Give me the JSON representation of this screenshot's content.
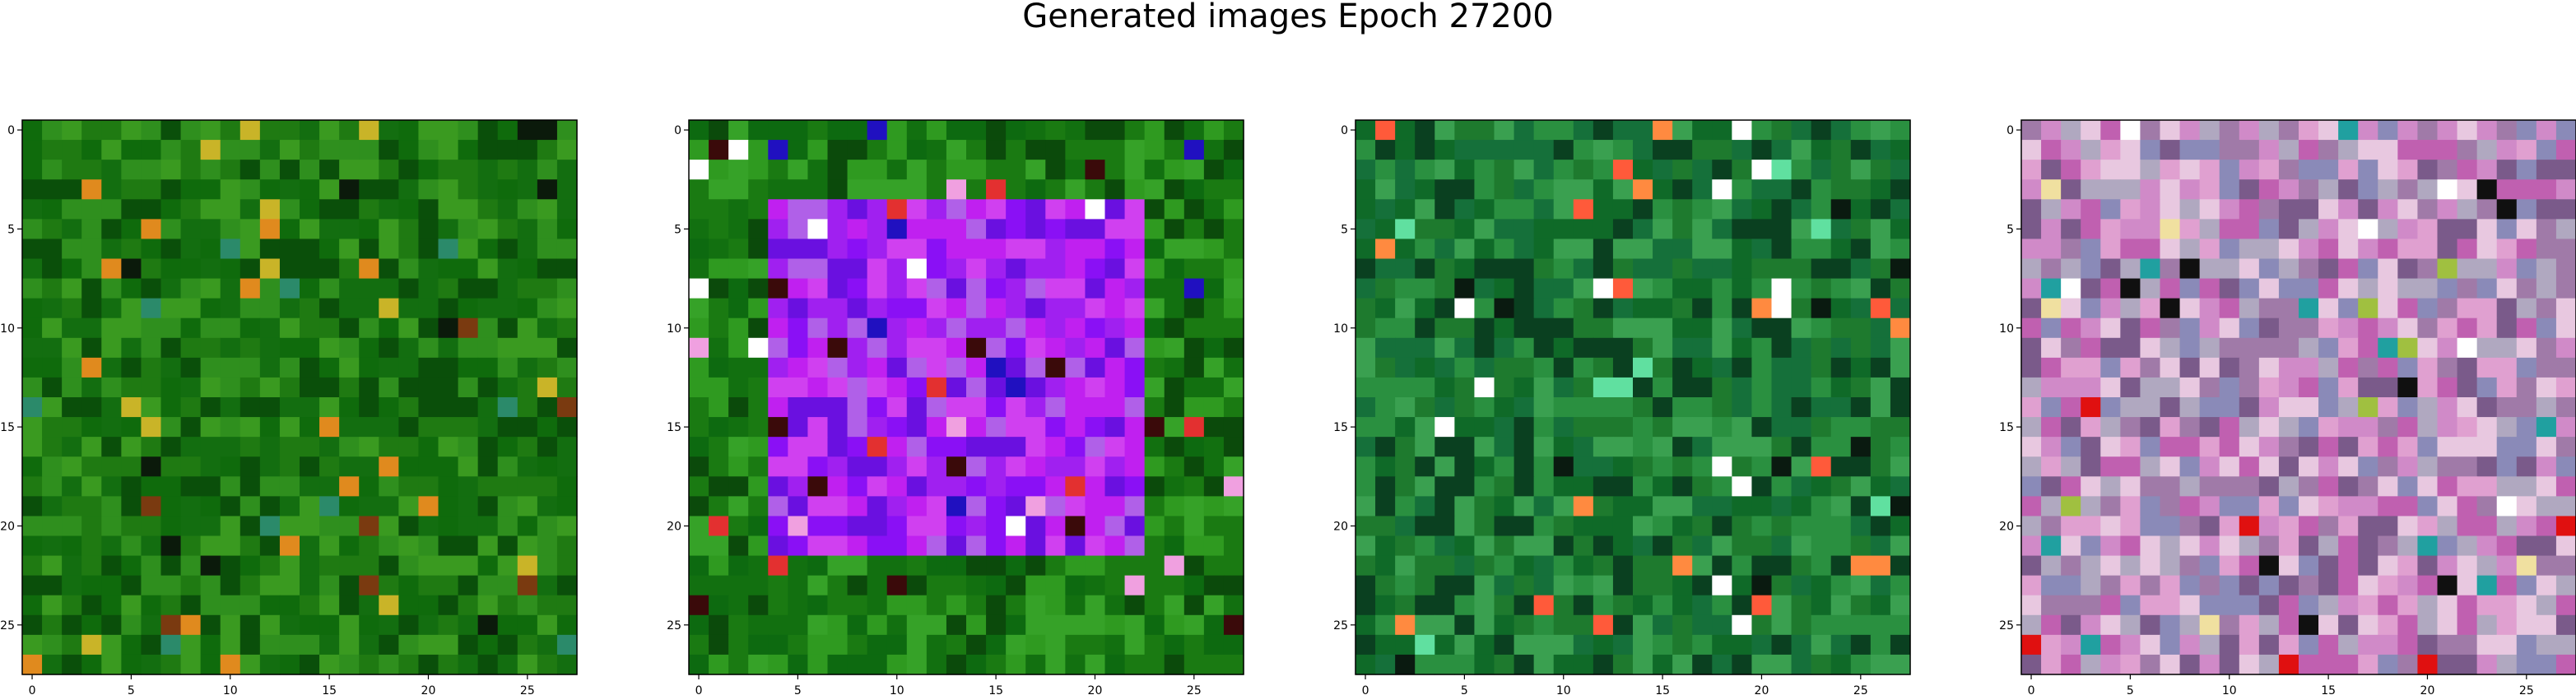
{
  "figure": {
    "title": "Generated images Epoch 27200"
  },
  "chart_data": [
    {
      "type": "heatmap",
      "colormap": "rgb-image",
      "seed": 11,
      "palette": [
        "#1f7a12",
        "#0f6b0c",
        "#2f8f1e",
        "#0a4f0a",
        "#3a9a20",
        "#136e10"
      ],
      "accents": [
        "#e08a1e",
        "#c9b428",
        "#2b8a6a",
        "#0b1a0b",
        "#7a3a10"
      ],
      "shape": [
        28,
        28
      ],
      "xticks": [
        0,
        5,
        10,
        15,
        20,
        25
      ],
      "yticks": [
        0,
        5,
        10,
        15,
        20,
        25
      ]
    },
    {
      "type": "heatmap",
      "colormap": "rgb-image",
      "seed": 23,
      "palette": [
        "#1a7a12",
        "#0d6a10",
        "#2f9a20",
        "#0b4a0b",
        "#36a228",
        "#127010"
      ],
      "inner_palette": [
        "#a020f0",
        "#c020f0",
        "#8a10f5",
        "#6a10e0",
        "#d040f0",
        "#b060e8"
      ],
      "accents": [
        "#e33030",
        "#f0a0e0",
        "#2010c0",
        "#3a0a0a",
        "#ffffff"
      ],
      "shape": [
        28,
        28
      ],
      "xticks": [
        0,
        5,
        10,
        15,
        20,
        25
      ],
      "yticks": [
        0,
        5,
        10,
        15,
        20,
        25
      ]
    },
    {
      "type": "heatmap",
      "colormap": "rgb-image",
      "seed": 37,
      "palette": [
        "#1e7a2e",
        "#0f6a28",
        "#2a9040",
        "#0a4020",
        "#3aa050",
        "#15703a"
      ],
      "accents": [
        "#ff5a3a",
        "#ffffff",
        "#60e0a0",
        "#0a1a10",
        "#ff8a40"
      ],
      "shape": [
        28,
        28
      ],
      "xticks": [
        0,
        5,
        10,
        15,
        20,
        25
      ],
      "yticks": [
        0,
        5,
        10,
        15,
        20,
        25
      ]
    },
    {
      "type": "heatmap",
      "colormap": "rgb-image",
      "seed": 53,
      "palette": [
        "#d08ac8",
        "#e8c8e0",
        "#a07aa8",
        "#c060b0",
        "#8a8ab8",
        "#b0a8c0",
        "#e0a0d0",
        "#7a5a8a"
      ],
      "accents": [
        "#e01010",
        "#101010",
        "#ffffff",
        "#20a0a0",
        "#f0e0a0",
        "#a0c040"
      ],
      "shape": [
        28,
        28
      ],
      "xticks": [
        0,
        5,
        10,
        15,
        20,
        25
      ],
      "yticks": [
        0,
        5,
        10,
        15,
        20,
        25
      ]
    }
  ]
}
